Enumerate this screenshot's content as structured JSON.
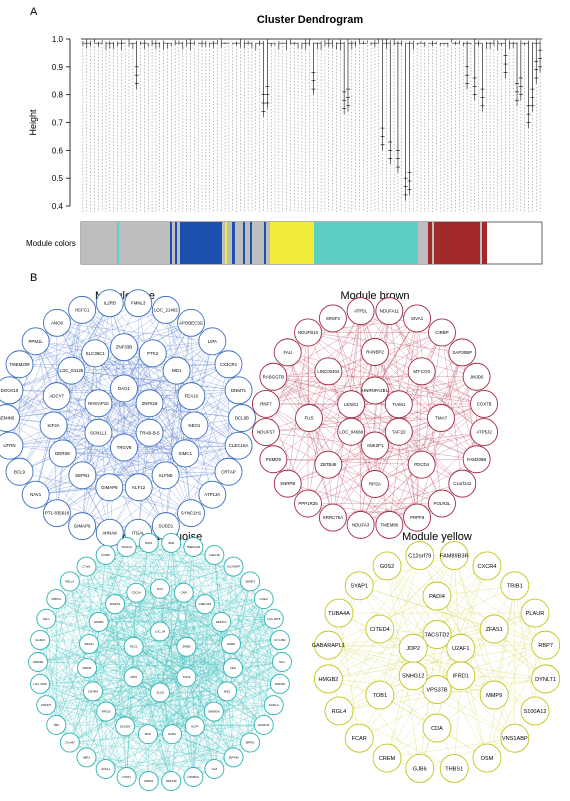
{
  "panel_a": {
    "letter": "A",
    "title": "Cluster Dendrogram",
    "ylabel": "Height",
    "yticks": [
      "1.0",
      "0.9",
      "0.8",
      "0.7",
      "0.6",
      "0.5",
      "0.4"
    ],
    "module_colors_label": "Module colors",
    "color_bar": [
      {
        "color": "#bebebe",
        "w": 36
      },
      {
        "color": "#5ccfc4",
        "w": 2
      },
      {
        "color": "#bebebe",
        "w": 51
      },
      {
        "color": "#1d4fae",
        "w": 2
      },
      {
        "color": "#bebebe",
        "w": 3
      },
      {
        "color": "#1d4fae",
        "w": 2
      },
      {
        "color": "#bebebe",
        "w": 3
      },
      {
        "color": "#1d4fae",
        "w": 42
      },
      {
        "color": "#bebebe",
        "w": 3
      },
      {
        "color": "#f1ec3a",
        "w": 2
      },
      {
        "color": "#bebebe",
        "w": 5
      },
      {
        "color": "#1d4fae",
        "w": 3
      },
      {
        "color": "#bebebe",
        "w": 8
      },
      {
        "color": "#1d4fae",
        "w": 2
      },
      {
        "color": "#bebebe",
        "w": 5
      },
      {
        "color": "#1d4fae",
        "w": 2
      },
      {
        "color": "#bebebe",
        "w": 12
      },
      {
        "color": "#1d4fae",
        "w": 2
      },
      {
        "color": "#bebebe",
        "w": 4
      },
      {
        "color": "#f1ec3a",
        "w": 44
      },
      {
        "color": "#5ccfc4",
        "w": 104
      },
      {
        "color": "#bebebe",
        "w": 10
      },
      {
        "color": "#a32a2a",
        "w": 4
      },
      {
        "color": "#bebebe",
        "w": 2
      },
      {
        "color": "#a32a2a",
        "w": 46
      },
      {
        "color": "#bebebe",
        "w": 2
      },
      {
        "color": "#a32a2a",
        "w": 5
      }
    ]
  },
  "panel_b": {
    "letter": "B",
    "modules": [
      {
        "title": "Module blue",
        "color": "#3c6fc0",
        "edge_color": "#4a70c8",
        "center": [
          124,
          418
        ],
        "radius": 118,
        "outer": [
          "FMNL3",
          "LOC_21402",
          "APOBEC3G",
          "LIPA",
          "CX3CR1",
          "DNMT1",
          "BCL6B",
          "CLEC16A",
          "CRTAP",
          "ATP13A",
          "SYNC1H1",
          "SUSD1",
          "ITGAL",
          "AHNAK",
          "GIMAP6",
          "PT1-835618",
          "NAV1",
          "BCL9",
          "UTRN",
          "GEMIN5",
          "DOCK10",
          "TMEM209",
          "PPM1L",
          "ANO6",
          "HCFC1",
          "IL2RB"
        ],
        "inner": [
          "ZNF33B",
          "PTK2",
          "NID1",
          "FEA10",
          "NEO1",
          "SIMC1",
          "SLFN5",
          "KLF12",
          "GIMAP8",
          "SEPN1",
          "DERSE",
          "KIF2A",
          "ADCY7",
          "LOC_04125",
          "SLC39C1",
          "DAG1",
          "ZNF618",
          "TRAB-B-5",
          "TRGV8",
          "SCN1L1",
          "RHGAP15"
        ]
      },
      {
        "title": "Module brown",
        "color": "#a32b44",
        "edge_color": "#b23250",
        "center": [
          375,
          418
        ],
        "radius": 110,
        "outer": [
          "NDUFA11",
          "SIVA1",
          "CIRBP",
          "SAP30BP",
          "JMJD6",
          "COX7B",
          "ATP5J2",
          "FAM208B",
          "C1orf142",
          "POLR2L",
          "PRPF8",
          "TMEM80",
          "NDUFA3",
          "SRRC75A",
          "PPP1R35",
          "SNRPB",
          "PSMD9",
          "NDUFS7",
          "RNF7",
          "RABGGTB",
          "FAU",
          "NDUFB10",
          "SRSF2",
          "ATP5L"
        ],
        "inner": [
          "RANBP2",
          "MT-CO3",
          "TMA7",
          "PDCD4",
          "RPSA",
          "ZBTB48",
          "FUS",
          "LINC00402",
          "HNRNPA2B1",
          "TIAM1",
          "TAF1D",
          "ANKZF1",
          "LOC_04668",
          "LENG1"
        ]
      },
      {
        "title": "Module turquoise",
        "color": "#2ab3b2",
        "edge_color": "#3dc0bd",
        "center": [
          160,
          662
        ],
        "radius": 122,
        "outer": [
          "SMA",
          "TMEM-004",
          "CLEC4D",
          "ALOX5AP",
          "SEMP1",
          "C19orf",
          "LOC-30T5",
          "C17orf62",
          "SIL1",
          "ZNF420",
          "AGR1-2",
          "HSA0711",
          "SRPK1",
          "ZNF443",
          "CA4",
          "C5ORFG",
          "RNF149",
          "CDRS1",
          "HTAT1",
          "ACSL1",
          "ABR1",
          "C7orf67",
          "TBK",
          "ZNF337",
          "LOC_0000",
          "SIRS3B",
          "GCAD4",
          "KAL1",
          "PRPH1",
          "KRLLA",
          "C7orf1",
          "ICAM3",
          "TALDO1",
          "NAP1"
        ],
        "inner": [
          "DCK",
          "CAIP",
          "CABLAP2",
          "DESTF1",
          "GHRH",
          "CEG",
          "MID1",
          "OHERSA",
          "NCF4",
          "NAM1",
          "SPIC",
          "DC1800",
          "RPS10",
          "CMTM4",
          "PRR11",
          "ARGS1",
          "AKRBO",
          "ZPAPS1",
          "CDC14",
          "LOC_04",
          "SIRB0",
          "TGN3",
          "SLC8",
          "ATP6",
          "RCC1"
        ]
      },
      {
        "title": "Module yellow",
        "color": "#c4c51d",
        "edge_color": "#cfd040",
        "center": [
          437,
          662
        ],
        "radius": 110,
        "outer": [
          "FAM89B3R",
          "CXCR4",
          "TRIB1",
          "PLAUR",
          "RBP7",
          "DYNLT1",
          "S100A12",
          "VNS1ABP",
          "OSM",
          "THBS1",
          "GJB6",
          "CREM",
          "FCAR",
          "RGL4",
          "HMGB2",
          "GABARAPL1",
          "TUBA4A",
          "SYAP1",
          "G0S2",
          "C12orf79"
        ],
        "inner": [
          "PADI4",
          "ZFAS1",
          "MMP9",
          "CDA",
          "TOB1",
          "CITED4",
          "TACSTD2",
          "U2AF1",
          "IFRD1",
          "VPS37B",
          "SNHG12",
          "JDP2"
        ]
      }
    ]
  }
}
